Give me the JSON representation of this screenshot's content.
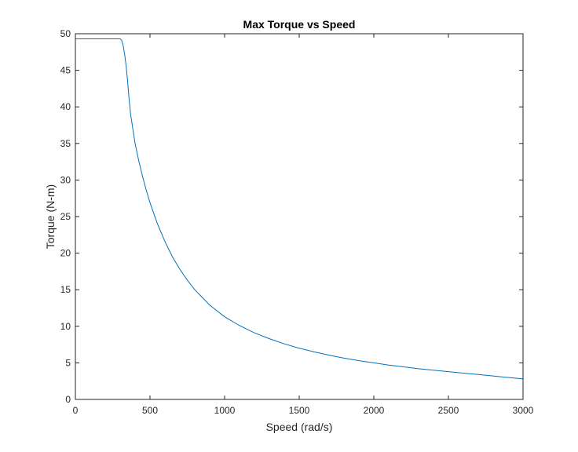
{
  "chart_data": {
    "type": "line",
    "title": "Max Torque vs Speed",
    "xlabel": "Speed (rad/s)",
    "ylabel": "Torque (N-m)",
    "xlim": [
      0,
      3000
    ],
    "ylim": [
      0,
      50
    ],
    "x_ticks": [
      0,
      500,
      1000,
      1500,
      2000,
      2500,
      3000
    ],
    "y_ticks": [
      0,
      5,
      10,
      15,
      20,
      25,
      30,
      35,
      40,
      45,
      50
    ],
    "grid": false,
    "box": true,
    "series": [
      {
        "color": "#0072BD",
        "points": [
          [
            0,
            49.3
          ],
          [
            100,
            49.3
          ],
          [
            200,
            49.3
          ],
          [
            300,
            49.3
          ],
          [
            310,
            49.1
          ],
          [
            320,
            48.4
          ],
          [
            330,
            47.2
          ],
          [
            340,
            45.6
          ],
          [
            350,
            43.5
          ],
          [
            360,
            41.0
          ],
          [
            370,
            39.0
          ],
          [
            385,
            37.0
          ],
          [
            400,
            35.0
          ],
          [
            425,
            32.6
          ],
          [
            450,
            30.5
          ],
          [
            475,
            28.6
          ],
          [
            500,
            26.9
          ],
          [
            550,
            24.0
          ],
          [
            600,
            21.6
          ],
          [
            650,
            19.5
          ],
          [
            700,
            17.8
          ],
          [
            750,
            16.3
          ],
          [
            800,
            15.0
          ],
          [
            900,
            12.9
          ],
          [
            1000,
            11.3
          ],
          [
            1100,
            10.1
          ],
          [
            1200,
            9.1
          ],
          [
            1300,
            8.3
          ],
          [
            1400,
            7.6
          ],
          [
            1500,
            7.0
          ],
          [
            1600,
            6.5
          ],
          [
            1700,
            6.05
          ],
          [
            1800,
            5.65
          ],
          [
            1900,
            5.3
          ],
          [
            2000,
            5.0
          ],
          [
            2100,
            4.7
          ],
          [
            2200,
            4.45
          ],
          [
            2300,
            4.2
          ],
          [
            2400,
            4.0
          ],
          [
            2500,
            3.8
          ],
          [
            2600,
            3.6
          ],
          [
            2700,
            3.4
          ],
          [
            2800,
            3.2
          ],
          [
            2900,
            3.0
          ],
          [
            3000,
            2.8
          ]
        ]
      }
    ]
  }
}
